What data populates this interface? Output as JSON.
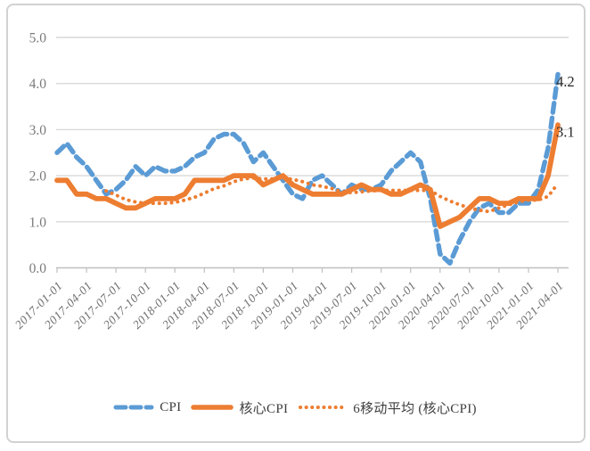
{
  "chart_data": {
    "type": "line",
    "x_axis": {
      "tick_labels": [
        "2017-01-01",
        "2017-04-01",
        "2017-07-01",
        "2017-10-01",
        "2018-01-01",
        "2018-04-01",
        "2018-07-01",
        "2018-10-01",
        "2019-01-01",
        "2019-04-01",
        "2019-07-01",
        "2019-10-01",
        "2020-01-01",
        "2020-04-01",
        "2020-07-01",
        "2020-10-01",
        "2021-01-01",
        "2021-04-01"
      ],
      "tick_every_n_months": 3
    },
    "y_axis": {
      "tick_labels": [
        "0.0",
        "1.0",
        "2.0",
        "3.0",
        "4.0",
        "5.0"
      ],
      "ylim": [
        0,
        5
      ]
    },
    "months": [
      "2017-01",
      "2017-02",
      "2017-03",
      "2017-04",
      "2017-05",
      "2017-06",
      "2017-07",
      "2017-08",
      "2017-09",
      "2017-10",
      "2017-11",
      "2017-12",
      "2018-01",
      "2018-02",
      "2018-03",
      "2018-04",
      "2018-05",
      "2018-06",
      "2018-07",
      "2018-08",
      "2018-09",
      "2018-10",
      "2018-11",
      "2018-12",
      "2019-01",
      "2019-02",
      "2019-03",
      "2019-04",
      "2019-05",
      "2019-06",
      "2019-07",
      "2019-08",
      "2019-09",
      "2019-10",
      "2019-11",
      "2019-12",
      "2020-01",
      "2020-02",
      "2020-03",
      "2020-04",
      "2020-05",
      "2020-06",
      "2020-07",
      "2020-08",
      "2020-09",
      "2020-10",
      "2020-11",
      "2020-12",
      "2021-01",
      "2021-02",
      "2021-03",
      "2021-04"
    ],
    "series": [
      {
        "name": "CPI",
        "style": "dashed",
        "color": "#5B9BD5",
        "values": [
          2.5,
          2.7,
          2.4,
          2.2,
          1.9,
          1.6,
          1.7,
          1.9,
          2.2,
          2.0,
          2.2,
          2.1,
          2.1,
          2.2,
          2.4,
          2.5,
          2.8,
          2.9,
          2.9,
          2.7,
          2.3,
          2.5,
          2.2,
          1.9,
          1.6,
          1.5,
          1.9,
          2.0,
          1.8,
          1.6,
          1.8,
          1.7,
          1.7,
          1.8,
          2.1,
          2.3,
          2.5,
          2.3,
          1.5,
          0.3,
          0.1,
          0.6,
          1.0,
          1.3,
          1.4,
          1.2,
          1.2,
          1.4,
          1.4,
          1.7,
          2.6,
          4.2
        ]
      },
      {
        "name": "核心CPI",
        "style": "solid",
        "color": "#ED7D31",
        "values": [
          1.9,
          1.9,
          1.6,
          1.6,
          1.5,
          1.5,
          1.4,
          1.3,
          1.3,
          1.4,
          1.5,
          1.5,
          1.5,
          1.6,
          1.9,
          1.9,
          1.9,
          1.9,
          2.0,
          2.0,
          2.0,
          1.8,
          1.9,
          2.0,
          1.8,
          1.7,
          1.6,
          1.6,
          1.6,
          1.6,
          1.7,
          1.8,
          1.7,
          1.7,
          1.6,
          1.6,
          1.7,
          1.8,
          1.7,
          0.9,
          1.0,
          1.1,
          1.3,
          1.5,
          1.5,
          1.4,
          1.4,
          1.5,
          1.5,
          1.5,
          2.0,
          3.1
        ]
      },
      {
        "name": "6移动平均 (核心CPI)",
        "style": "dotted",
        "color": "#ED7D31",
        "values": [
          null,
          null,
          null,
          null,
          null,
          1.67,
          1.58,
          1.48,
          1.43,
          1.4,
          1.4,
          1.4,
          1.42,
          1.47,
          1.53,
          1.62,
          1.72,
          1.78,
          1.87,
          1.93,
          1.95,
          1.93,
          1.93,
          1.95,
          1.92,
          1.87,
          1.8,
          1.77,
          1.72,
          1.65,
          1.63,
          1.65,
          1.67,
          1.68,
          1.68,
          1.68,
          1.68,
          1.68,
          1.68,
          1.55,
          1.45,
          1.37,
          1.3,
          1.25,
          1.22,
          1.3,
          1.37,
          1.43,
          1.47,
          1.47,
          1.55,
          1.83
        ]
      }
    ],
    "point_labels": [
      {
        "series_index": 0,
        "point": "last",
        "text": "4.2"
      },
      {
        "series_index": 1,
        "point": "last",
        "text": "3.1"
      }
    ],
    "legend_position": "bottom-center",
    "grid": "horizontal"
  },
  "colors": {
    "cpi_blue": "#5B9BD5",
    "core_orange": "#ED7D31",
    "gridline": "#D9D9D9",
    "axis": "#BFBFBF",
    "tick_text": "#6E6E6E",
    "y_tick_text": "#7A7A7A",
    "data_label_text": "#262626",
    "legend_text": "#3D3D3D",
    "frame_border": "#D2D2D2",
    "background": "#FFFFFF"
  }
}
